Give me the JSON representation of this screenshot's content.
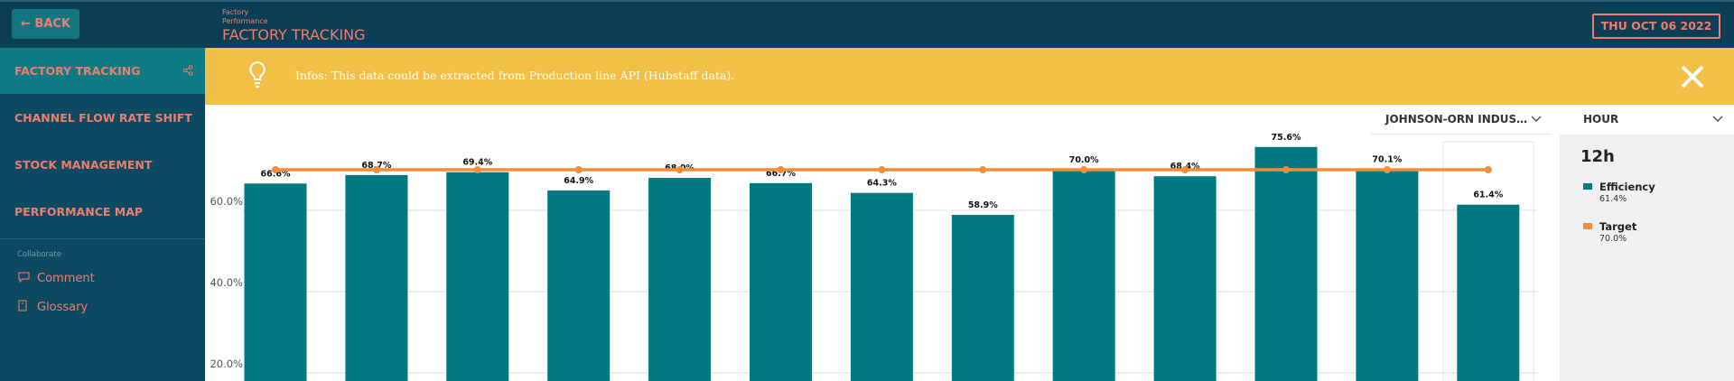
{
  "header": {
    "back": "BACK",
    "breadcrumb": [
      "Factory",
      "Performance"
    ],
    "title": "FACTORY TRACKING",
    "date": "THU OCT 06 2022"
  },
  "sidebar": {
    "items": [
      "FACTORY TRACKING",
      "CHANNEL FLOW RATE SHIFT",
      "STOCK MANAGEMENT",
      "PERFORMANCE MAP"
    ],
    "section": "Collaborate",
    "links": [
      "Comment",
      "Glossary"
    ]
  },
  "banner": {
    "text": "Infos: This data could be extracted from Production line API (Hubstaff data)."
  },
  "filters": {
    "company": "JOHNSON-ORN INDUS…",
    "period": "HOUR"
  },
  "panel": {
    "title": "12h"
  },
  "chart_data": {
    "type": "bar",
    "series": [
      {
        "name": "Efficiency",
        "type": "bar",
        "color": "#007a80",
        "values": [
          66.6,
          68.7,
          69.4,
          64.9,
          68.0,
          66.7,
          64.3,
          58.9,
          70.0,
          68.4,
          75.6,
          70.1,
          61.4
        ],
        "value_labels": [
          "66.6%",
          "68.7%",
          "69.4%",
          "64.9%",
          "68.0%",
          "66.7%",
          "64.3%",
          "58.9%",
          "70.0%",
          "68.4%",
          "75.6%",
          "70.1%",
          "61.4%"
        ],
        "legend_label": "61.4%"
      },
      {
        "name": "Target",
        "type": "line",
        "color": "#ef8f3c",
        "values": [
          70,
          70,
          70,
          70,
          70,
          70,
          70,
          70,
          70,
          70,
          70,
          70,
          70
        ],
        "legend_label": "70.0%"
      }
    ],
    "ylim": [
      18,
      78
    ],
    "yticks": [
      {
        "value": 20,
        "label": "20.0%"
      },
      {
        "value": 40,
        "label": "40.0%"
      },
      {
        "value": 60,
        "label": "60.0%"
      }
    ],
    "grid": true
  }
}
